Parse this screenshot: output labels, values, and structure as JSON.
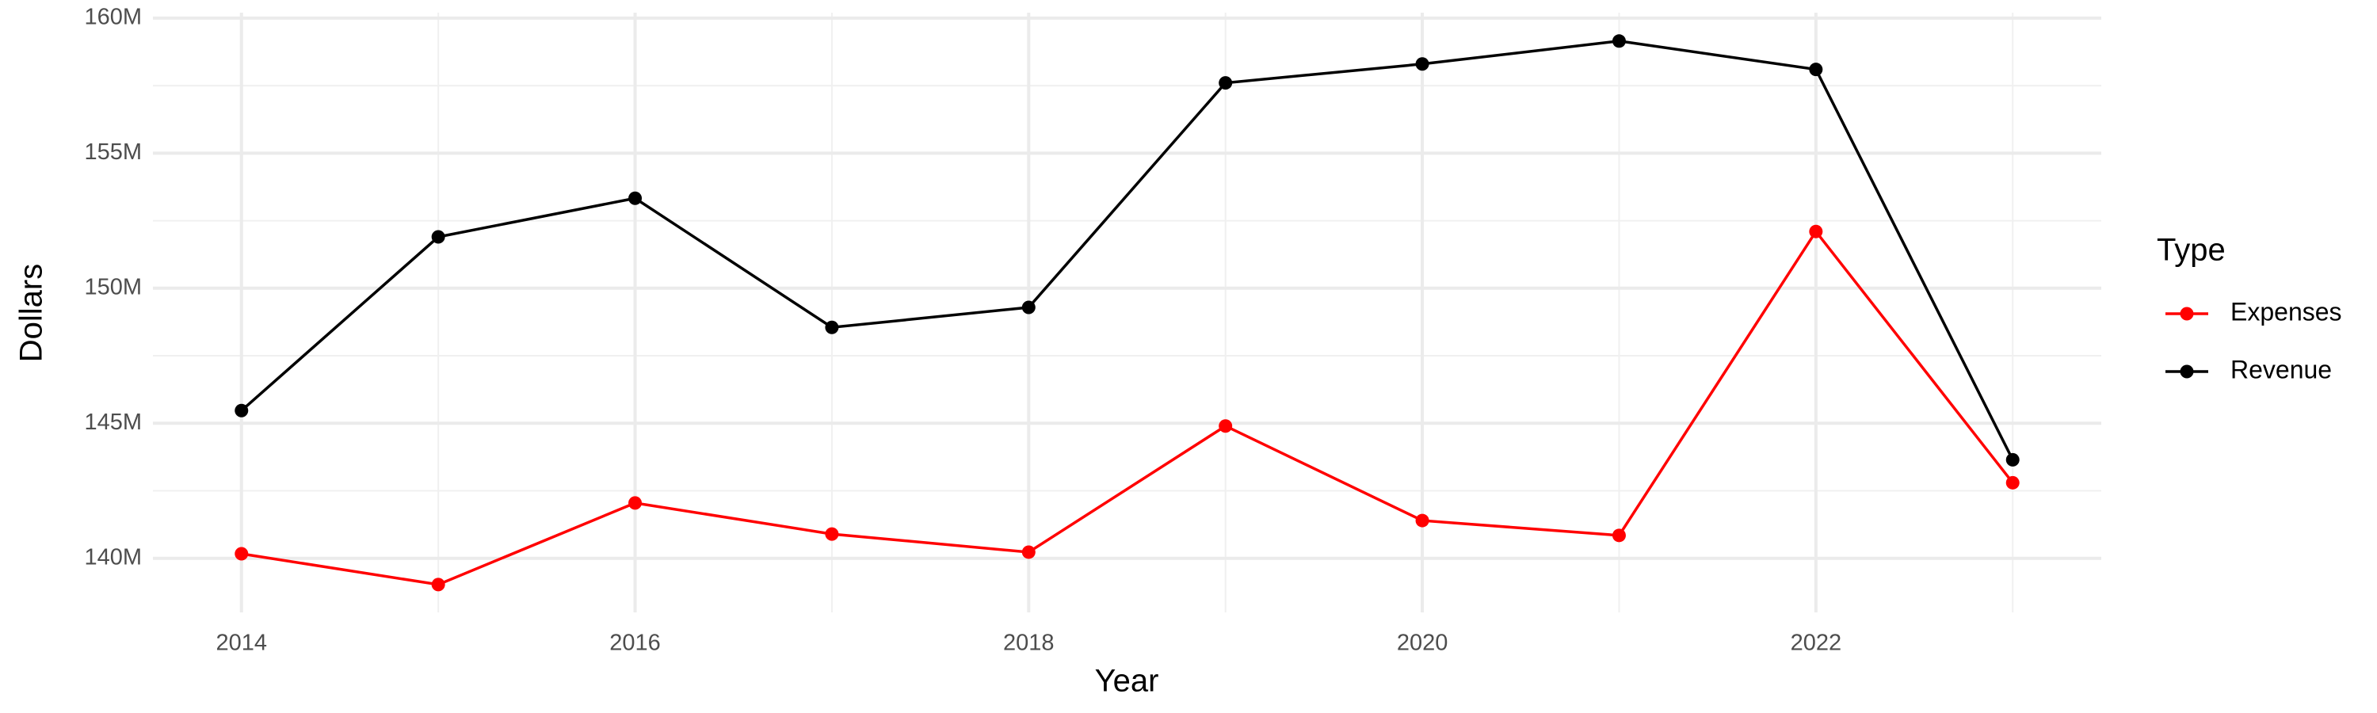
{
  "chart_data": {
    "type": "line",
    "x_label": "Year",
    "y_label": "Dollars",
    "legend_title": "Type",
    "x": [
      2014,
      2015,
      2016,
      2017,
      2018,
      2019,
      2020,
      2021,
      2022,
      2023
    ],
    "series": [
      {
        "name": "Expenses",
        "color": "#ff0000",
        "values": [
          140170000,
          139030000,
          142050000,
          140900000,
          140230000,
          144900000,
          141400000,
          140850000,
          152100000,
          142800000
        ]
      },
      {
        "name": "Revenue",
        "color": "#000000",
        "values": [
          145470000,
          151900000,
          153330000,
          148550000,
          149290000,
          157600000,
          158300000,
          159150000,
          158100000,
          143650000
        ]
      }
    ],
    "xlim": [
      2013.55,
      2023.45
    ],
    "xticks": [
      2014,
      2016,
      2018,
      2020,
      2022
    ],
    "ylim": [
      138000000,
      160200000
    ],
    "yticks": [
      {
        "value": 140000000,
        "label": "140M"
      },
      {
        "value": 145000000,
        "label": "145M"
      },
      {
        "value": 150000000,
        "label": "150M"
      },
      {
        "value": 155000000,
        "label": "155M"
      },
      {
        "value": 160000000,
        "label": "160M"
      }
    ],
    "grid": true,
    "legend_position": "right"
  }
}
